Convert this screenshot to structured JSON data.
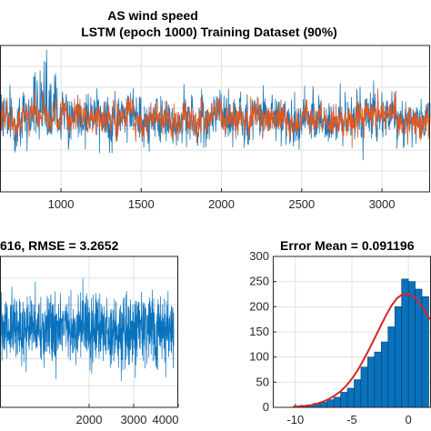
{
  "figure": {
    "title_line1": "AS wind speed",
    "title_line2": "LSTM (epoch 1000) Training Dataset  (90%)",
    "colors": {
      "target": "#1f77b4",
      "prediction": "#e4571e",
      "error": "#0a72bd",
      "fit": "#d62728",
      "axes": "#262626"
    }
  },
  "chart_data": [
    {
      "type": "line",
      "panel": "top",
      "title": "AS wind speed\nLSTM (epoch 1000) Training Dataset  (90%)",
      "xlabel": "",
      "ylabel": "",
      "xlim": [
        620,
        3300
      ],
      "ylim": [
        -12,
        16
      ],
      "x_ticks": [
        1000,
        1500,
        2000,
        2500,
        3000
      ],
      "x_tick_labels": [
        "1000",
        "1500",
        "2000",
        "2500",
        "3000"
      ],
      "grid": true,
      "series": [
        {
          "name": "",
          "color": "#1f77b4",
          "description_level": "noisy measured wind speed"
        },
        {
          "name": "",
          "color": "#e4571e",
          "description_level": "LSTM predicted wind speed"
        }
      ]
    },
    {
      "type": "line",
      "panel": "bottom-left",
      "title": "616, RMSE = 3.2652",
      "xlabel": "",
      "ylabel": "",
      "xlim": [
        0,
        4000
      ],
      "ylim": [
        -14,
        14
      ],
      "x_ticks": [
        2000,
        3000,
        4000
      ],
      "x_tick_labels": [
        "2000",
        "3000",
        "4000"
      ],
      "grid": true,
      "series": [
        {
          "name": "",
          "color": "#0a72bd"
        }
      ]
    },
    {
      "type": "bar",
      "panel": "bottom-right",
      "title": "Error Mean = 0.091196",
      "xlabel": "",
      "ylabel": "",
      "xlim": [
        -12,
        2
      ],
      "ylim": [
        0,
        300
      ],
      "x_ticks": [
        -10,
        -5,
        0
      ],
      "x_tick_labels": [
        "-10",
        "-5",
        "0"
      ],
      "y_ticks": [
        0,
        50,
        100,
        150,
        200,
        250,
        300
      ],
      "y_tick_labels": [
        "0",
        "50",
        "100",
        "150",
        "200",
        "250",
        "300"
      ],
      "grid": true,
      "bin_edges": [
        -10.2,
        -9.6,
        -9.0,
        -8.4,
        -7.8,
        -7.2,
        -6.6,
        -6.0,
        -5.4,
        -4.8,
        -4.2,
        -3.6,
        -3.0,
        -2.4,
        -1.8,
        -1.2,
        -0.6,
        0.0,
        0.6,
        1.2,
        1.8
      ],
      "values": [
        2,
        4,
        5,
        8,
        10,
        15,
        20,
        30,
        38,
        55,
        80,
        100,
        110,
        130,
        160,
        200,
        255,
        250,
        235,
        220
      ],
      "fit_line": {
        "x": [
          -10.2,
          -9.5,
          -9.0,
          -8.5,
          -8.0,
          -7.5,
          -7.0,
          -6.5,
          -6.0,
          -5.5,
          -5.0,
          -4.5,
          -4.0,
          -3.5,
          -3.0,
          -2.5,
          -2.0,
          -1.5,
          -1.0,
          -0.5,
          0.0,
          0.5,
          1.0,
          1.5,
          1.9
        ],
        "y": [
          1,
          2,
          3,
          5,
          8,
          12,
          17,
          24,
          32,
          43,
          57,
          73,
          93,
          114,
          137,
          160,
          182,
          202,
          217,
          225,
          225,
          220,
          207,
          190,
          175
        ]
      }
    }
  ]
}
